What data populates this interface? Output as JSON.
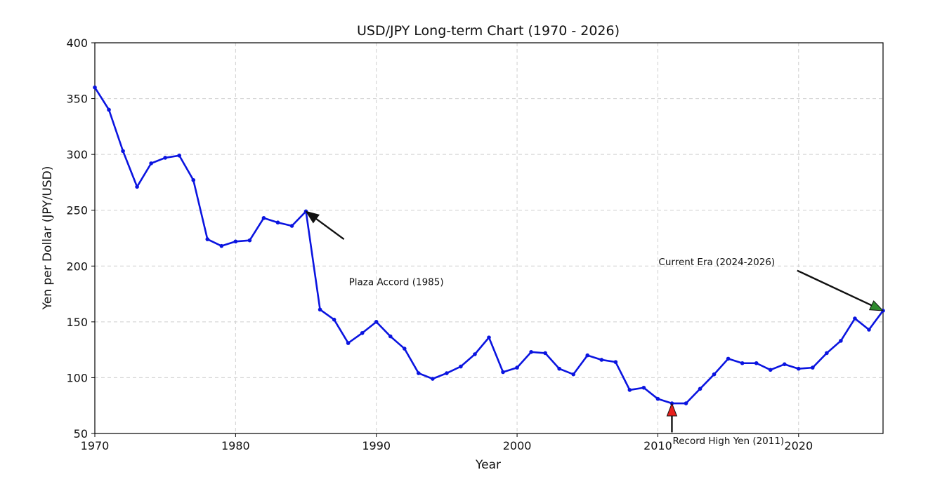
{
  "chart_data": {
    "type": "line",
    "title": "USD/JPY Long-term Chart (1970 - 2026)",
    "xlabel": "Year",
    "ylabel": "Yen per Dollar (JPY/USD)",
    "xlim": [
      1970,
      2026
    ],
    "ylim": [
      50,
      400
    ],
    "x_ticks": [
      1970,
      1980,
      1990,
      2000,
      2010,
      2020
    ],
    "y_ticks": [
      50,
      100,
      150,
      200,
      250,
      300,
      350,
      400
    ],
    "grid": true,
    "series": [
      {
        "color": "#0a14e0",
        "marker": "circle",
        "x": [
          1970,
          1971,
          1972,
          1973,
          1974,
          1975,
          1976,
          1977,
          1978,
          1979,
          1980,
          1981,
          1982,
          1983,
          1984,
          1985,
          1986,
          1987,
          1988,
          1989,
          1990,
          1991,
          1992,
          1993,
          1994,
          1995,
          1996,
          1997,
          1998,
          1999,
          2000,
          2001,
          2002,
          2003,
          2004,
          2005,
          2006,
          2007,
          2008,
          2009,
          2010,
          2011,
          2012,
          2013,
          2014,
          2015,
          2016,
          2017,
          2018,
          2019,
          2020,
          2021,
          2022,
          2023,
          2024,
          2025,
          2026
        ],
        "values": [
          360,
          340,
          303,
          271,
          292,
          297,
          299,
          277,
          224,
          218,
          222,
          223,
          243,
          239,
          236,
          249,
          161,
          152,
          131,
          140,
          150,
          137,
          126,
          104,
          99,
          104,
          110,
          121,
          136,
          105,
          109,
          123,
          122,
          108,
          103,
          120,
          116,
          114,
          89,
          91,
          81,
          77,
          77,
          90,
          103,
          117,
          113,
          113,
          107,
          112,
          108,
          109,
          122,
          133,
          153,
          143,
          160
        ]
      }
    ],
    "annotations": [
      {
        "text": "Plaza Accord (1985)",
        "point": [
          1985,
          249
        ],
        "text_pos": [
          1988,
          186
        ],
        "arrow_color": "#111111"
      },
      {
        "text": "Record High Yen (2011)",
        "point": [
          2011,
          77
        ],
        "text_pos": [
          2011,
          43
        ],
        "arrow_color": "#e8201c"
      },
      {
        "text": "Current Era (2024-2026)",
        "point": [
          2026,
          160
        ],
        "text_pos": [
          2010,
          207
        ],
        "arrow_color": "#2f8a2f"
      }
    ]
  }
}
